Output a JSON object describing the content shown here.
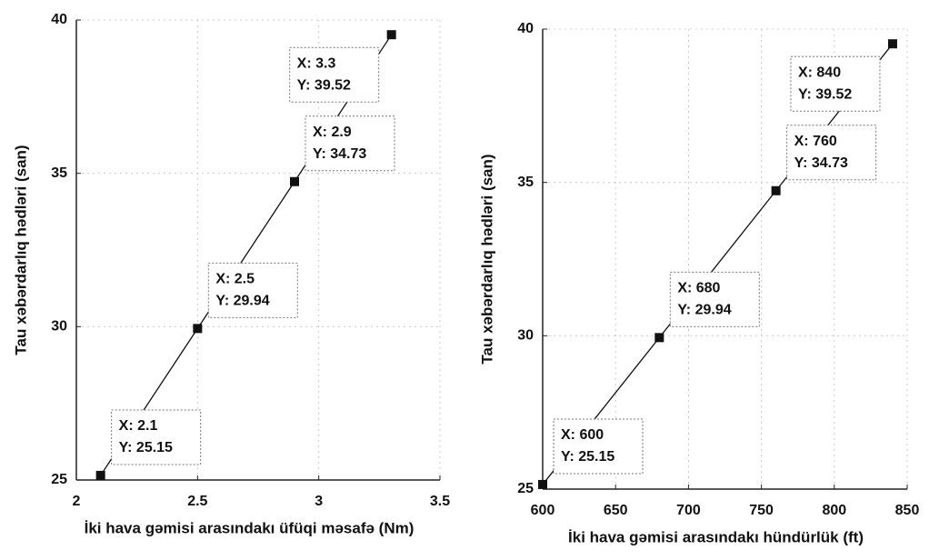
{
  "chart_data": [
    {
      "type": "line",
      "xlabel": "İki hava gəmisi arasındakı üfüqi məsafə (Nm)",
      "ylabel": "Tau xəbərdarlıq hədləri (san)",
      "x": [
        2.1,
        2.5,
        2.9,
        3.3
      ],
      "values": [
        25.15,
        29.94,
        34.73,
        39.52
      ],
      "x_labels": [
        "X: 2.1",
        "X: 2.5",
        "X: 2.9",
        "X: 3.3"
      ],
      "value_labels": [
        "Y: 25.15",
        "Y: 29.94",
        "Y: 34.73",
        "Y: 39.52"
      ],
      "color": "#111111",
      "xlim": [
        2,
        3.5
      ],
      "xticks": [
        2,
        2.5,
        3,
        3.5
      ],
      "ylim": [
        25,
        40
      ],
      "yticks": [
        25,
        30,
        35,
        40
      ],
      "grid": true
    },
    {
      "type": "line",
      "xlabel": "İki hava gəmisi arasındakı hündürlük (ft)",
      "ylabel": "Tau xəbərdarlıq hədləri (san)",
      "x": [
        600,
        680,
        760,
        840
      ],
      "values": [
        25.15,
        29.94,
        34.73,
        39.52
      ],
      "x_labels": [
        "X: 600",
        "X: 680",
        "X: 760",
        "X: 840"
      ],
      "value_labels": [
        "Y: 25.15",
        "Y: 29.94",
        "Y: 34.73",
        "Y: 39.52"
      ],
      "color": "#111111",
      "xlim": [
        600,
        850
      ],
      "xticks": [
        600,
        650,
        700,
        750,
        800,
        850
      ],
      "ylim": [
        25,
        40
      ],
      "yticks": [
        25,
        30,
        35,
        40
      ],
      "grid": true
    }
  ]
}
